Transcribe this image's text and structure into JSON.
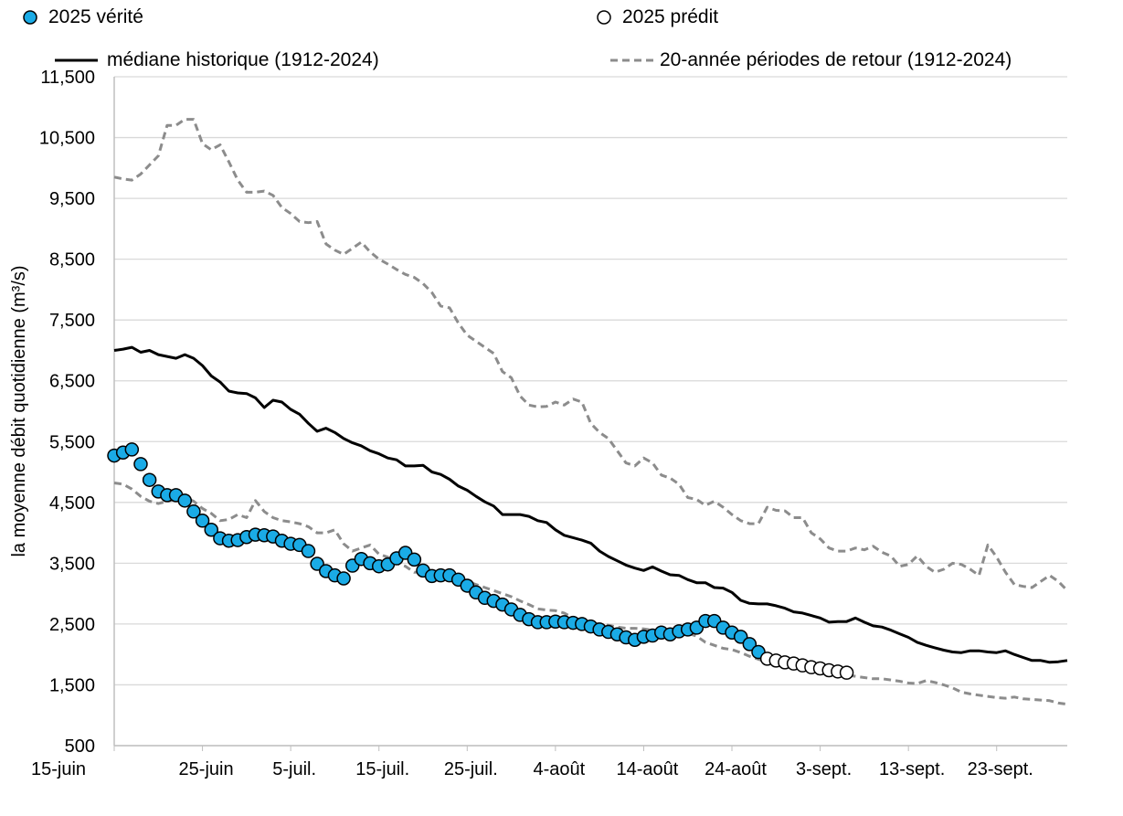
{
  "chart_data": {
    "type": "line",
    "title": "",
    "xlabel": "",
    "ylabel": "la moyenne débit quotidienne (m³/s)",
    "ylim": [
      500,
      11500
    ],
    "yticks": [
      "500",
      "1,500",
      "2,500",
      "3,500",
      "4,500",
      "5,500",
      "6,500",
      "7,500",
      "8,500",
      "9,500",
      "10,500",
      "11,500"
    ],
    "ytick_values": [
      500,
      1500,
      2500,
      3500,
      4500,
      5500,
      6500,
      7500,
      8500,
      9500,
      10500,
      11500
    ],
    "xlim": [
      "2025-06-15",
      "2025-10-01"
    ],
    "xticks": [
      "15-juin",
      "25-juin",
      "5-juil.",
      "15-juil.",
      "25-juil.",
      "4-août",
      "14-août",
      "24-août",
      "3-sept.",
      "13-sept.",
      "23-sept."
    ],
    "xtick_dates": [
      "2025-06-15",
      "2025-06-25",
      "2025-07-05",
      "2025-07-15",
      "2025-07-25",
      "2025-08-04",
      "2025-08-14",
      "2025-08-24",
      "2025-09-03",
      "2025-09-13",
      "2025-09-23"
    ],
    "grid": true,
    "legend_placement": "top",
    "x": [
      "2025-06-15",
      "2025-06-16",
      "2025-06-17",
      "2025-06-18",
      "2025-06-19",
      "2025-06-20",
      "2025-06-21",
      "2025-06-22",
      "2025-06-23",
      "2025-06-24",
      "2025-06-25",
      "2025-06-26",
      "2025-06-27",
      "2025-06-28",
      "2025-06-29",
      "2025-06-30",
      "2025-07-01",
      "2025-07-02",
      "2025-07-03",
      "2025-07-04",
      "2025-07-05",
      "2025-07-06",
      "2025-07-07",
      "2025-07-08",
      "2025-07-09",
      "2025-07-10",
      "2025-07-11",
      "2025-07-12",
      "2025-07-13",
      "2025-07-14",
      "2025-07-15",
      "2025-07-16",
      "2025-07-17",
      "2025-07-18",
      "2025-07-19",
      "2025-07-20",
      "2025-07-21",
      "2025-07-22",
      "2025-07-23",
      "2025-07-24",
      "2025-07-25",
      "2025-07-26",
      "2025-07-27",
      "2025-07-28",
      "2025-07-29",
      "2025-07-30",
      "2025-07-31",
      "2025-08-01",
      "2025-08-02",
      "2025-08-03",
      "2025-08-04",
      "2025-08-05",
      "2025-08-06",
      "2025-08-07",
      "2025-08-08",
      "2025-08-09",
      "2025-08-10",
      "2025-08-11",
      "2025-08-12",
      "2025-08-13",
      "2025-08-14",
      "2025-08-15",
      "2025-08-16",
      "2025-08-17",
      "2025-08-18",
      "2025-08-19",
      "2025-08-20",
      "2025-08-21",
      "2025-08-22",
      "2025-08-23",
      "2025-08-24",
      "2025-08-25",
      "2025-08-26",
      "2025-08-27",
      "2025-08-28",
      "2025-08-29",
      "2025-08-30",
      "2025-08-31",
      "2025-09-01",
      "2025-09-02",
      "2025-09-03",
      "2025-09-04",
      "2025-09-05",
      "2025-09-06",
      "2025-09-07",
      "2025-09-08",
      "2025-09-09",
      "2025-09-10",
      "2025-09-11",
      "2025-09-12",
      "2025-09-13",
      "2025-09-14",
      "2025-09-15",
      "2025-09-16",
      "2025-09-17",
      "2025-09-18",
      "2025-09-19",
      "2025-09-20",
      "2025-09-21",
      "2025-09-22",
      "2025-09-23",
      "2025-09-24",
      "2025-09-25",
      "2025-09-26",
      "2025-09-27",
      "2025-09-28",
      "2025-09-29",
      "2025-09-30",
      "2025-10-01"
    ],
    "series": [
      {
        "name": "2025 vérité",
        "style": "marker-filled",
        "color": "#1AABE6",
        "values": [
          5270,
          5320,
          5370,
          5130,
          4870,
          4680,
          4620,
          4620,
          4530,
          4350,
          4200,
          4050,
          3910,
          3870,
          3880,
          3930,
          3970,
          3960,
          3940,
          3870,
          3820,
          3800,
          3700,
          3490,
          3370,
          3300,
          3250,
          3460,
          3570,
          3500,
          3450,
          3480,
          3580,
          3670,
          3560,
          3380,
          3290,
          3300,
          3300,
          3230,
          3130,
          3020,
          2930,
          2880,
          2820,
          2740,
          2650,
          2580,
          2530,
          2530,
          2540,
          2530,
          2520,
          2500,
          2460,
          2410,
          2370,
          2330,
          2280,
          2240,
          2290,
          2310,
          2360,
          2330,
          2380,
          2410,
          2440,
          2550,
          2550,
          2440,
          2360,
          2290,
          2170,
          2040,
          null,
          null,
          null,
          null,
          null,
          null,
          null,
          null,
          null,
          null,
          null,
          null,
          null,
          null,
          null,
          null,
          null,
          null,
          null,
          null,
          null,
          null,
          null,
          null,
          null,
          null,
          null,
          null,
          null,
          null,
          null,
          null,
          null,
          null,
          null
        ]
      },
      {
        "name": "2025 prédit",
        "style": "marker-open",
        "color": "#000000",
        "values": [
          null,
          null,
          null,
          null,
          null,
          null,
          null,
          null,
          null,
          null,
          null,
          null,
          null,
          null,
          null,
          null,
          null,
          null,
          null,
          null,
          null,
          null,
          null,
          null,
          null,
          null,
          null,
          null,
          null,
          null,
          null,
          null,
          null,
          null,
          null,
          null,
          null,
          null,
          null,
          null,
          null,
          null,
          null,
          null,
          null,
          null,
          null,
          null,
          null,
          null,
          null,
          null,
          null,
          null,
          null,
          null,
          null,
          null,
          null,
          null,
          null,
          null,
          null,
          null,
          null,
          null,
          null,
          null,
          null,
          null,
          null,
          null,
          null,
          null,
          1930,
          1900,
          1870,
          1850,
          1820,
          1790,
          1770,
          1740,
          1720,
          1700,
          null,
          null,
          null,
          null,
          null,
          null,
          null,
          null,
          null,
          null,
          null,
          null,
          null,
          null,
          null,
          null,
          null,
          null,
          null,
          null,
          null,
          null,
          null,
          null,
          null
        ]
      },
      {
        "name": "médiane historique (1912-2024)",
        "style": "solid",
        "color": "#000000",
        "values": [
          7000,
          7020,
          7050,
          6970,
          7000,
          6930,
          6900,
          6870,
          6930,
          6870,
          6750,
          6580,
          6480,
          6330,
          6300,
          6290,
          6220,
          6060,
          6180,
          6150,
          6030,
          5950,
          5800,
          5670,
          5720,
          5650,
          5550,
          5480,
          5430,
          5350,
          5300,
          5230,
          5200,
          5100,
          5100,
          5110,
          5000,
          4960,
          4880,
          4770,
          4700,
          4600,
          4510,
          4440,
          4300,
          4300,
          4300,
          4270,
          4200,
          4170,
          4050,
          3960,
          3920,
          3880,
          3830,
          3700,
          3610,
          3540,
          3470,
          3420,
          3380,
          3440,
          3370,
          3310,
          3300,
          3230,
          3180,
          3180,
          3100,
          3090,
          3020,
          2890,
          2840,
          2830,
          2830,
          2800,
          2760,
          2700,
          2680,
          2640,
          2600,
          2530,
          2540,
          2540,
          2600,
          2530,
          2470,
          2450,
          2400,
          2340,
          2280,
          2200,
          2150,
          2110,
          2070,
          2040,
          2030,
          2060,
          2060,
          2040,
          2030,
          2060,
          2000,
          1950,
          1900,
          1900,
          1870,
          1880,
          1900
        ]
      },
      {
        "name": "20-année périodes de retour (1912-2024)",
        "style": "dashed",
        "color": "#8C8C8C",
        "values": [
          9850,
          9820,
          9800,
          9900,
          10050,
          10200,
          10700,
          10700,
          10800,
          10800,
          10400,
          10300,
          10380,
          10100,
          9800,
          9600,
          9600,
          9620,
          9550,
          9350,
          9250,
          9120,
          9100,
          9120,
          8750,
          8650,
          8580,
          8680,
          8780,
          8620,
          8500,
          8420,
          8330,
          8250,
          8200,
          8100,
          7950,
          7730,
          7700,
          7450,
          7250,
          7150,
          7050,
          6950,
          6650,
          6550,
          6250,
          6100,
          6070,
          6080,
          6150,
          6100,
          6200,
          6150,
          5800,
          5650,
          5550,
          5350,
          5150,
          5100,
          5230,
          5150,
          4950,
          4900,
          4800,
          4580,
          4550,
          4450,
          4520,
          4420,
          4300,
          4200,
          4150,
          4150,
          4420,
          4370,
          4360,
          4250,
          4250,
          4000,
          3900,
          3750,
          3700,
          3700,
          3750,
          3720,
          3780,
          3680,
          3620,
          3450,
          3480,
          3620,
          3450,
          3350,
          3400,
          3500,
          3480,
          3400,
          3300,
          3800,
          3600,
          3350,
          3150,
          3120,
          3100,
          3200,
          3300,
          3200,
          3050
        ]
      },
      {
        "name": "20-année périodes de retour (1912-2024)",
        "style": "dashed",
        "color": "#8C8C8C",
        "values": [
          4820,
          4800,
          4720,
          4600,
          4520,
          4480,
          4520,
          4550,
          4580,
          4520,
          4400,
          4320,
          4200,
          4220,
          4300,
          4250,
          4530,
          4350,
          4250,
          4200,
          4180,
          4150,
          4100,
          4000,
          4000,
          4050,
          3820,
          3700,
          3750,
          3800,
          3650,
          3600,
          3500,
          3450,
          3350,
          3360,
          3300,
          3270,
          3270,
          3250,
          3200,
          3150,
          3100,
          3050,
          3000,
          2950,
          2880,
          2820,
          2750,
          2730,
          2720,
          2680,
          2600,
          2550,
          2520,
          2500,
          2480,
          2450,
          2430,
          2430,
          2420,
          2400,
          2380,
          2370,
          2330,
          2350,
          2300,
          2200,
          2150,
          2100,
          2080,
          2030,
          1970,
          1920,
          1870,
          1850,
          1830,
          1800,
          1780,
          1760,
          1730,
          1700,
          1680,
          1660,
          1640,
          1620,
          1600,
          1600,
          1580,
          1560,
          1530,
          1520,
          1570,
          1540,
          1500,
          1450,
          1380,
          1350,
          1330,
          1310,
          1290,
          1280,
          1300,
          1270,
          1260,
          1250,
          1240,
          1200,
          1180
        ]
      }
    ]
  },
  "legend": {
    "observed": "2025 vérité",
    "predicted": "2025 prédit",
    "median": "médiane historique (1912-2024)",
    "return_period": "20-année périodes de retour (1912-2024)"
  }
}
